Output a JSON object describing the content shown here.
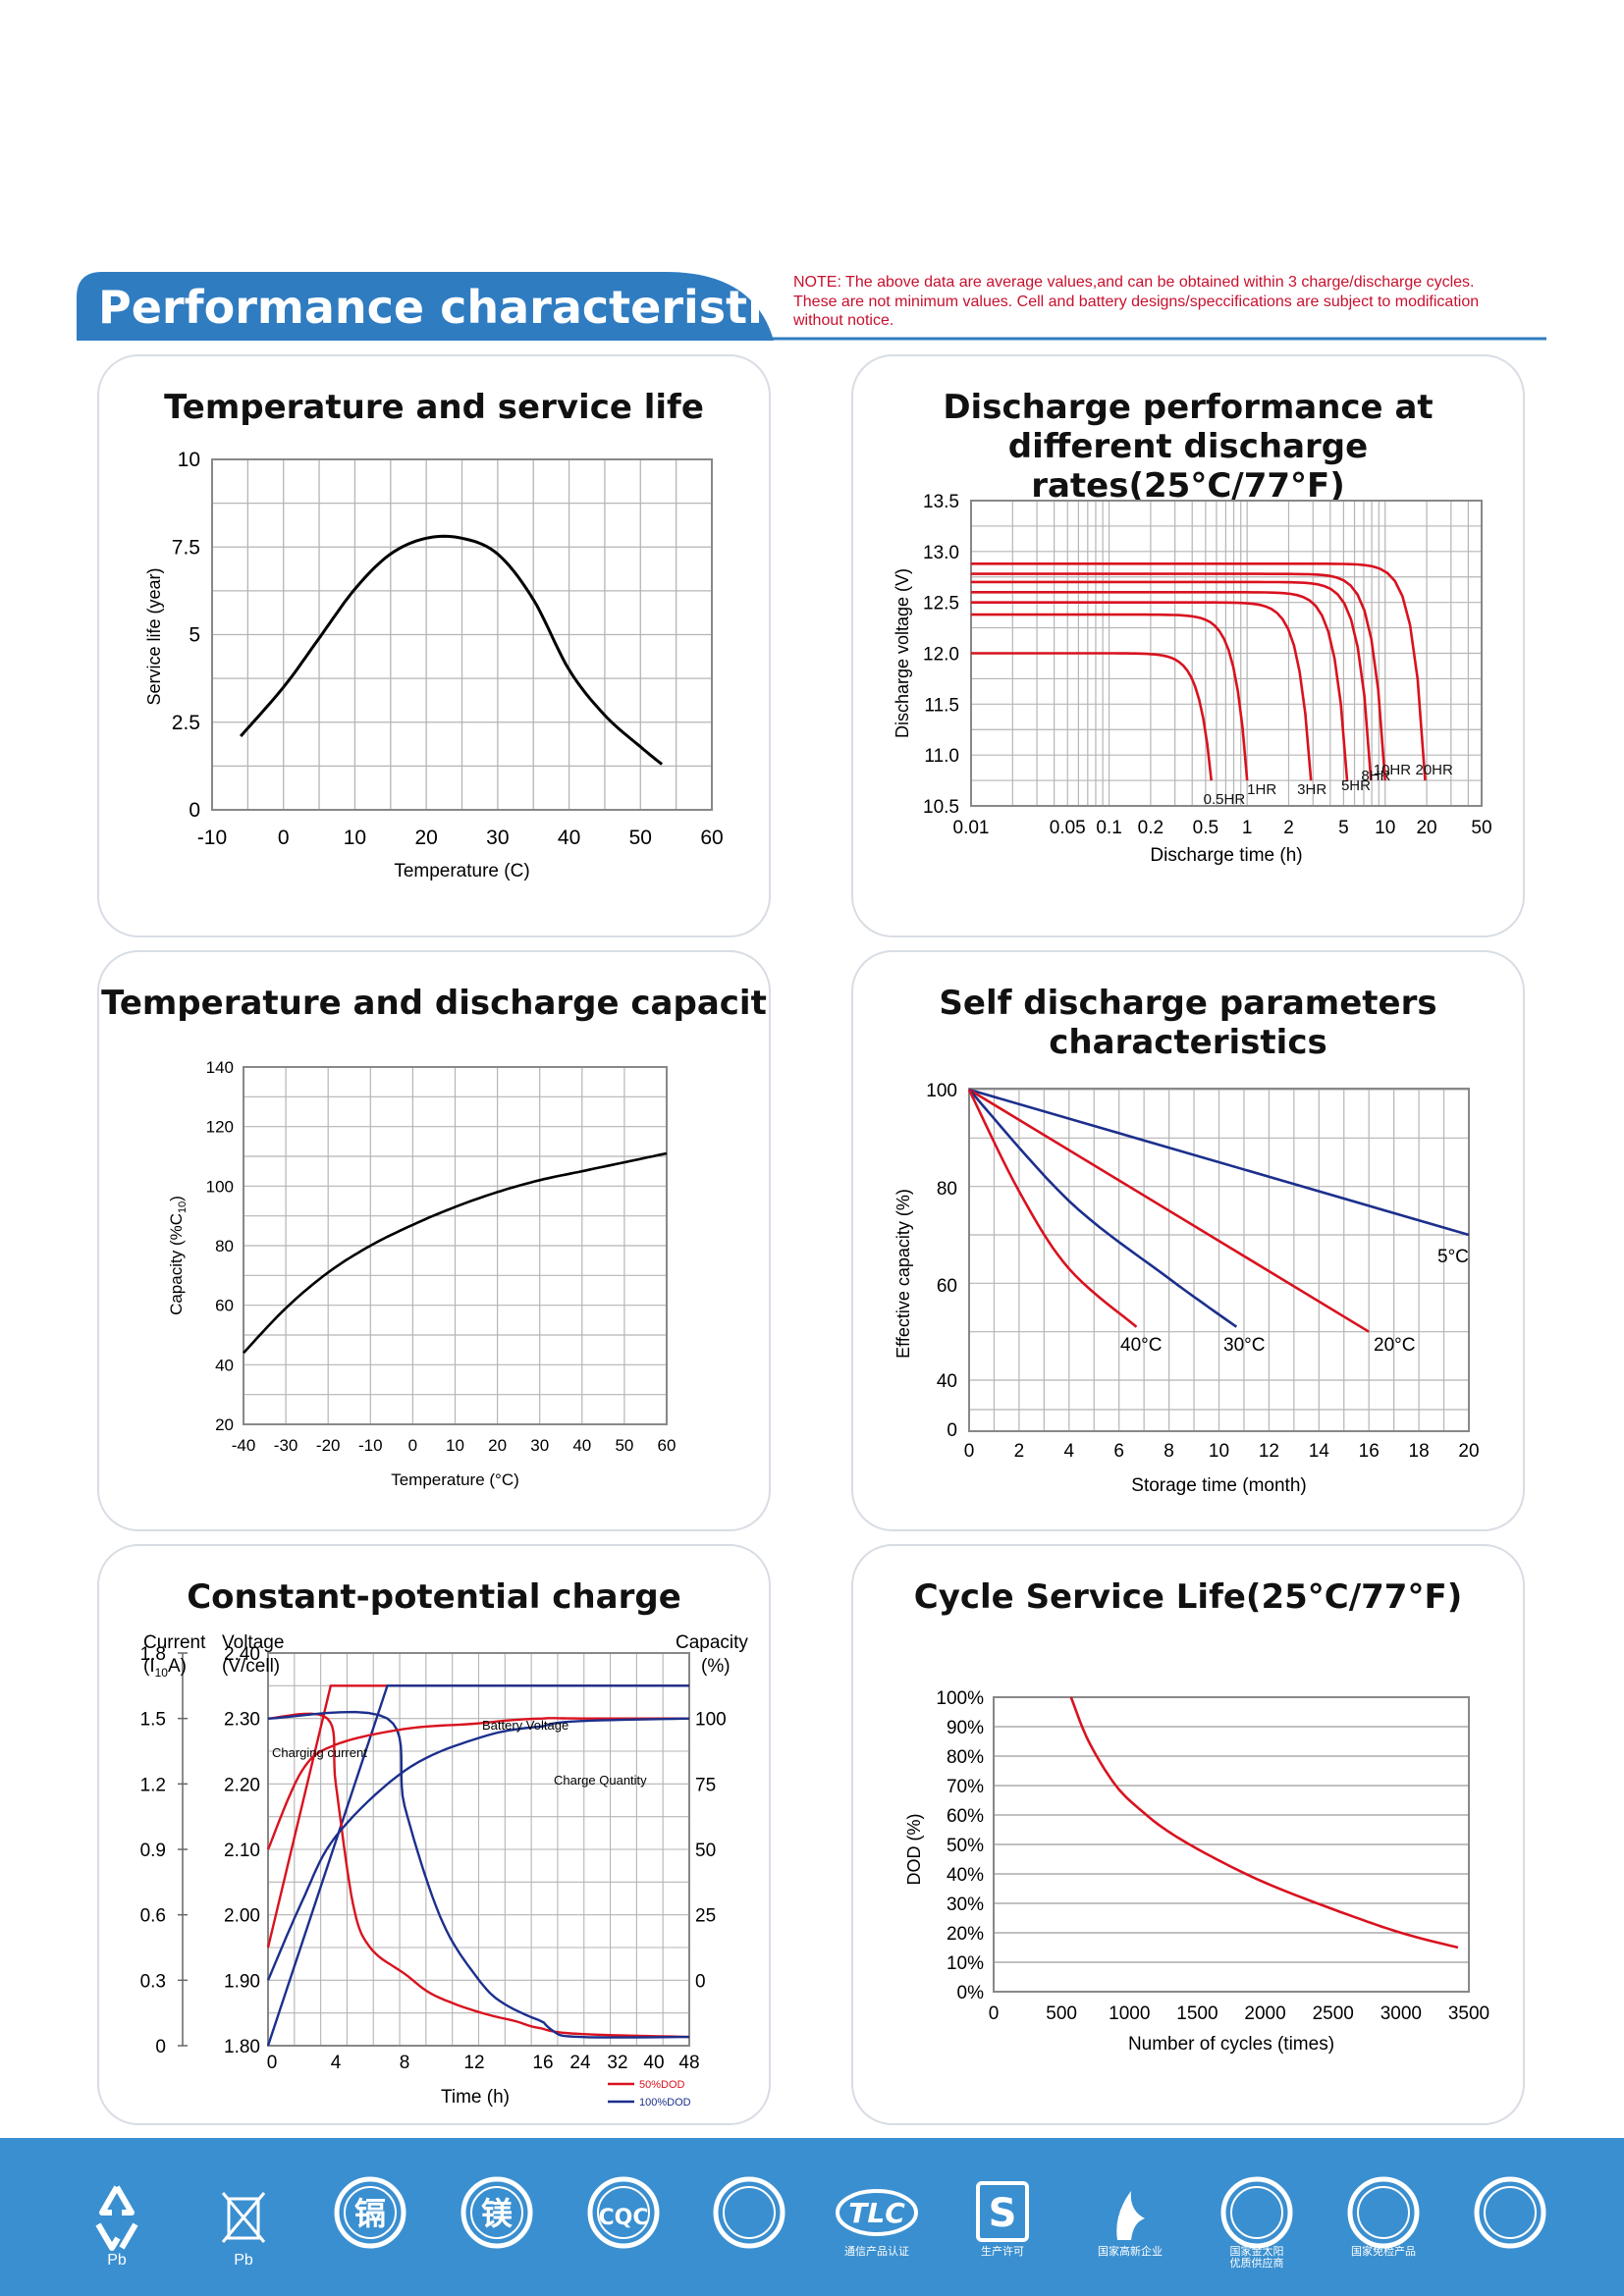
{
  "header": {
    "title": "Performance characteristics",
    "note": "NOTE: The above data are average values,and can be obtained within 3 charge/discharge cycles.\nThese are not minimum values. Cell and battery designs/speccifications are subject to modification\nwithout notice.",
    "band_color": "#2f7cc1",
    "note_color": "#c8102e"
  },
  "colors": {
    "red": "#d9121f",
    "blue": "#1c2f8c",
    "grid": "#9a9a9a",
    "curve": "#000000"
  },
  "chart_data": [
    {
      "id": "temp_life",
      "type": "line",
      "title": "Temperature and service life",
      "xlabel": "Temperature (C)",
      "ylabel": "Service life (year)",
      "xlim": [
        -10,
        60
      ],
      "ylim": [
        0,
        10
      ],
      "xticks": [
        "-10",
        "0",
        "10",
        "20",
        "30",
        "40",
        "50",
        "60"
      ],
      "yticks": [
        "0",
        "2.5",
        "5",
        "7.5",
        "10"
      ],
      "grid": true,
      "series": [
        {
          "x": [
            -6,
            0,
            5,
            10,
            15,
            20,
            25,
            30,
            35,
            40,
            45,
            50,
            53
          ],
          "y": [
            2.1,
            3.5,
            4.9,
            6.3,
            7.3,
            7.75,
            7.75,
            7.3,
            6.0,
            4.0,
            2.7,
            1.8,
            1.3
          ]
        }
      ]
    },
    {
      "id": "discharge_rates",
      "type": "line",
      "title": "Discharge performance at\ndifferent discharge rates(25°C/77°F)",
      "xlabel": "Discharge time (h)",
      "ylabel": "Discharge voltage (V)",
      "xscale": "log",
      "xlim": [
        0.01,
        50
      ],
      "ylim": [
        10.5,
        13.5
      ],
      "xticks": [
        "0.01",
        "0.05",
        "0.1",
        "0.2",
        "0.5",
        "1",
        "2",
        "5",
        "10",
        "20",
        "50"
      ],
      "yticks": [
        "10.5",
        "11.0",
        "11.5",
        "12.0",
        "12.5",
        "13.0",
        "13.5"
      ],
      "grid": true,
      "series": [
        {
          "name": "0.5HR",
          "plateau": 12.0,
          "end_time": 0.55
        },
        {
          "name": "1HR",
          "plateau": 12.38,
          "end_time": 1.0
        },
        {
          "name": "3HR",
          "plateau": 12.5,
          "end_time": 2.9
        },
        {
          "name": "5HR",
          "plateau": 12.6,
          "end_time": 5.3
        },
        {
          "name": "8HR",
          "plateau": 12.7,
          "end_time": 7.9
        },
        {
          "name": "10HR",
          "plateau": 12.78,
          "end_time": 10.0
        },
        {
          "name": "20HR",
          "plateau": 12.88,
          "end_time": 19.5
        }
      ]
    },
    {
      "id": "temp_capacity",
      "type": "line",
      "title": "Temperature and discharge capacit",
      "xlabel": "Temperature (°C)",
      "ylabel": "Capacity (%C",
      "ylabel_sub": "10",
      "ylabel_end": ")",
      "xlim": [
        -40,
        60
      ],
      "ylim": [
        20,
        140
      ],
      "xticks": [
        "-40",
        "-30",
        "-20",
        "-10",
        "0",
        "10",
        "20",
        "30",
        "40",
        "50",
        "60"
      ],
      "yticks": [
        "20",
        "40",
        "60",
        "80",
        "100",
        "120",
        "140"
      ],
      "grid": true,
      "series": [
        {
          "x": [
            -40,
            -30,
            -20,
            -10,
            0,
            10,
            20,
            30,
            40,
            50,
            60
          ],
          "y": [
            44,
            59,
            71,
            80,
            87,
            93,
            98,
            102,
            105,
            108,
            111
          ]
        }
      ]
    },
    {
      "id": "self_discharge",
      "type": "line",
      "title": "Self discharge parameters characteristics",
      "xlabel": "Storage time (month)",
      "ylabel": "Effective capacity (%)",
      "xlim": [
        0,
        20
      ],
      "xticks": [
        "0",
        "2",
        "4",
        "6",
        "8",
        "10",
        "12",
        "14",
        "16",
        "18",
        "20"
      ],
      "yticks": [
        "0",
        "40",
        "60",
        "80",
        "100"
      ],
      "grid": true,
      "series": [
        {
          "name": "5°C",
          "color": "blue",
          "x": [
            0,
            20
          ],
          "y": [
            100,
            70
          ]
        },
        {
          "name": "20°C",
          "color": "red",
          "x": [
            0,
            16
          ],
          "y": [
            100,
            50
          ]
        },
        {
          "name": "30°C",
          "color": "blue",
          "x": [
            0,
            4,
            8,
            10.7
          ],
          "y": [
            100,
            77,
            61,
            51
          ]
        },
        {
          "name": "40°C",
          "color": "red",
          "x": [
            0,
            2,
            4,
            6.7
          ],
          "y": [
            100,
            79,
            63,
            51
          ]
        }
      ]
    },
    {
      "id": "constant_potential",
      "type": "line",
      "title": "Constant-potential charge",
      "xlabel": "Time (h)",
      "axis_current": "Current",
      "axis_current_unit": "(I",
      "axis_current_sub": "10",
      "axis_current_end": "A)",
      "axis_voltage": "Voltage",
      "axis_voltage_unit": "(V/cell)",
      "axis_capacity": "Capacity",
      "axis_capacity_unit": "(%)",
      "current_ticks": [
        "0",
        "0.3",
        "0.6",
        "0.9",
        "1.2",
        "1.5",
        "1.8"
      ],
      "voltage_ticks": [
        "1.80",
        "1.90",
        "2.00",
        "2.10",
        "2.20",
        "2.30",
        "2.40"
      ],
      "capacity_ticks": [
        "0",
        "25",
        "50",
        "75",
        "100"
      ],
      "xticks": [
        "0",
        "4",
        "8",
        "12",
        "16",
        "24",
        "32",
        "40",
        "48"
      ],
      "annotations": [
        "Battery Voltage",
        "Charging current",
        "Charge Quantity"
      ],
      "legend": [
        {
          "name": "50%DOD",
          "color": "red"
        },
        {
          "name": "100%DOD",
          "color": "blue"
        }
      ],
      "series": [
        {
          "name": "50%DOD voltage",
          "color": "red",
          "x": [
            0,
            3.7,
            48
          ],
          "y_voltage": [
            1.95,
            2.35,
            2.35
          ]
        },
        {
          "name": "100%DOD voltage",
          "color": "blue",
          "x": [
            0,
            7,
            48
          ],
          "y_voltage": [
            1.8,
            2.35,
            2.35
          ]
        },
        {
          "name": "50%DOD current",
          "color": "red",
          "x": [
            0,
            3.5,
            4,
            5,
            6,
            8,
            10,
            14,
            20,
            48
          ],
          "y_current": [
            1.5,
            1.5,
            1.2,
            0.65,
            0.45,
            0.33,
            0.22,
            0.12,
            0.06,
            0.04
          ]
        },
        {
          "name": "100%DOD current",
          "color": "blue",
          "x": [
            0,
            7,
            8,
            10,
            12,
            14,
            18,
            24,
            48
          ],
          "y_current": [
            1.5,
            1.5,
            1.1,
            0.6,
            0.33,
            0.18,
            0.07,
            0.04,
            0.04
          ]
        },
        {
          "name": "50%DOD charge quantity",
          "color": "red",
          "x": [
            0,
            2,
            4,
            8,
            12,
            16,
            24,
            48
          ],
          "y_capacity": [
            50,
            80,
            90,
            96,
            98,
            100,
            100,
            100
          ]
        },
        {
          "name": "100%DOD charge quantity",
          "color": "blue",
          "x": [
            0,
            2,
            4,
            8,
            12,
            16,
            24,
            48
          ],
          "y_capacity": [
            0,
            30,
            55,
            80,
            92,
            97,
            99,
            100
          ]
        }
      ]
    },
    {
      "id": "cycle_life",
      "type": "line",
      "title": "Cycle Service Life(25°C/77°F)",
      "xlabel": "Number of cycles (times)",
      "ylabel": "DOD (%)",
      "xlim": [
        0,
        3500
      ],
      "ylim": [
        0,
        100
      ],
      "xticks": [
        "0",
        "500",
        "1000",
        "1500",
        "2000",
        "2500",
        "3000",
        "3500"
      ],
      "yticks": [
        "0%",
        "10%",
        "20%",
        "30%",
        "40%",
        "50%",
        "60%",
        "70%",
        "80%",
        "90%",
        "100%"
      ],
      "grid": "horizontal",
      "series": [
        {
          "color": "red",
          "x": [
            570,
            700,
            900,
            1100,
            1300,
            1600,
            2000,
            2500,
            3000,
            3420
          ],
          "y": [
            100,
            85,
            70,
            61,
            54,
            46,
            37,
            28,
            20,
            15
          ]
        }
      ]
    }
  ],
  "certifications": [
    {
      "icon": "recycle-pb-icon",
      "label": "Pb"
    },
    {
      "icon": "crossed-bin-pb-icon",
      "label": "Pb"
    },
    {
      "icon": "cadmium-free-icon",
      "glyph": "镉"
    },
    {
      "icon": "magnesium-free-icon",
      "glyph": "镁"
    },
    {
      "icon": "cqc-icon",
      "glyph": "CQC"
    },
    {
      "icon": "certification-seal-icon",
      "glyph": ""
    },
    {
      "icon": "tlc-icon",
      "glyph": "TLC",
      "label": "通信产品认证"
    },
    {
      "icon": "production-license-icon",
      "glyph": "S",
      "label": "生产许可"
    },
    {
      "icon": "high-tech-enterprise-icon",
      "label": "国家高新企业"
    },
    {
      "icon": "solar-supplier-icon",
      "label": "国家金太阳\n优质供应商"
    },
    {
      "icon": "inspection-exempt-icon",
      "label": "国家免检产品"
    },
    {
      "icon": "famous-brand-icon",
      "glyph": ""
    }
  ]
}
